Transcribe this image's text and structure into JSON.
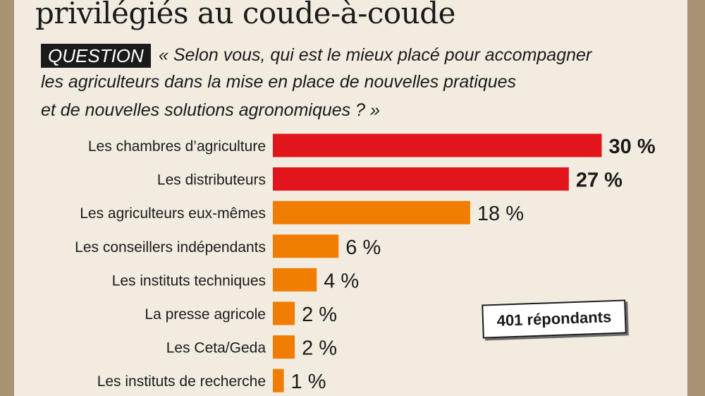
{
  "header": {
    "title": "privilégiés au coude-à-coude",
    "question_label": "QUESTION",
    "question_lines": [
      "« Selon vous, qui est le mieux placé pour accompagner",
      "les agriculteurs dans la mise en place de nouvelles pratiques",
      "et de nouvelles solutions agronomiques ? »"
    ]
  },
  "respondents_badge": "401 répondants",
  "colors": {
    "highlight": "#e2151c",
    "standard": "#f07d00",
    "background": "#f2ece0",
    "frame": "#a89274"
  },
  "chart_data": {
    "type": "bar",
    "orientation": "horizontal",
    "categories": [
      "Les chambres d’agriculture",
      "Les distributeurs",
      "Les agriculteurs eux-mêmes",
      "Les conseillers indépendants",
      "Les instituts techniques",
      "La presse agricole",
      "Les Ceta/Geda",
      "Les instituts de recherche"
    ],
    "values": [
      30,
      27,
      18,
      6,
      4,
      2,
      2,
      1
    ],
    "value_labels": [
      "30 %",
      "27 %",
      "18 %",
      "6 %",
      "4 %",
      "2 %",
      "2 %",
      "1 %"
    ],
    "highlighted": [
      true,
      true,
      false,
      false,
      false,
      false,
      false,
      false
    ],
    "unit": "%",
    "xlim": [
      0,
      30
    ],
    "grid": false,
    "legend": "none"
  }
}
